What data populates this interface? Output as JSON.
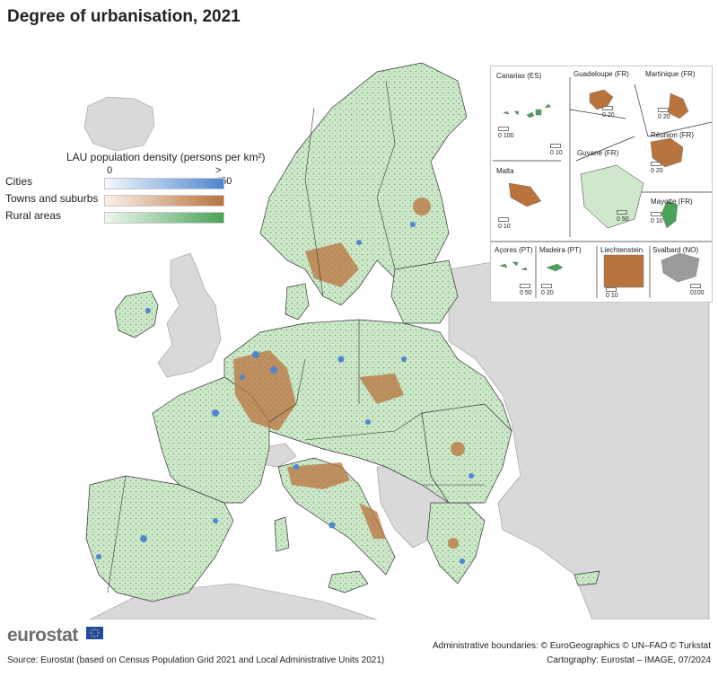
{
  "title": "Degree of urbanisation, 2021",
  "legend": {
    "title": "LAU population density (persons per km²)",
    "min": "0",
    "max": "> 450",
    "classes": [
      {
        "label": "Cities",
        "color_low": "#f4f8fd",
        "color_high": "#4e86cf"
      },
      {
        "label": "Towns and suburbs",
        "color_low": "#fbf1ea",
        "color_high": "#b9733c"
      },
      {
        "label": "Rural areas",
        "color_low": "#f0f8ef",
        "color_high": "#4aa356"
      }
    ]
  },
  "colors": {
    "sea": "#ffffff",
    "non_eu_land": "#d9d9d9",
    "eu_rural": "#cfe8cc",
    "eu_rural_dense": "#4aa356",
    "towns": "#b9733c",
    "cities": "#4e86cf",
    "borders": "#333333"
  },
  "insets": [
    {
      "label": "Canarias (ES)",
      "scale": "0 100"
    },
    {
      "label": "Guadeloupe (FR)",
      "scale": "0 20"
    },
    {
      "label": "Martinique (FR)",
      "scale": "0 20"
    },
    {
      "label": "Réunion (FR)",
      "scale": "0 20"
    },
    {
      "label": "Guyane (FR)",
      "scale": "0 50"
    },
    {
      "label": "Malta",
      "scale": "0 10"
    },
    {
      "label": "Mayotte (FR)",
      "scale": "0 10"
    },
    {
      "label": "Açores (PT)",
      "scale": "0 50"
    },
    {
      "label": "Madeira (PT)",
      "scale": "0 20"
    },
    {
      "label": "Liechtenstein",
      "scale": "0 10"
    },
    {
      "label": "Svalbard (NO)",
      "scale": "0100"
    }
  ],
  "extra_scale": "0 10",
  "footer": {
    "logo": "eurostat",
    "boundaries": "Administrative boundaries: © EuroGeographics © UN–FAO © Turkstat",
    "cartography": "Cartography: Eurostat – IMAGE, 07/2024",
    "source": "Source: Eurostat (based on Census Population Grid 2021 and Local Administrative Units 2021)"
  }
}
